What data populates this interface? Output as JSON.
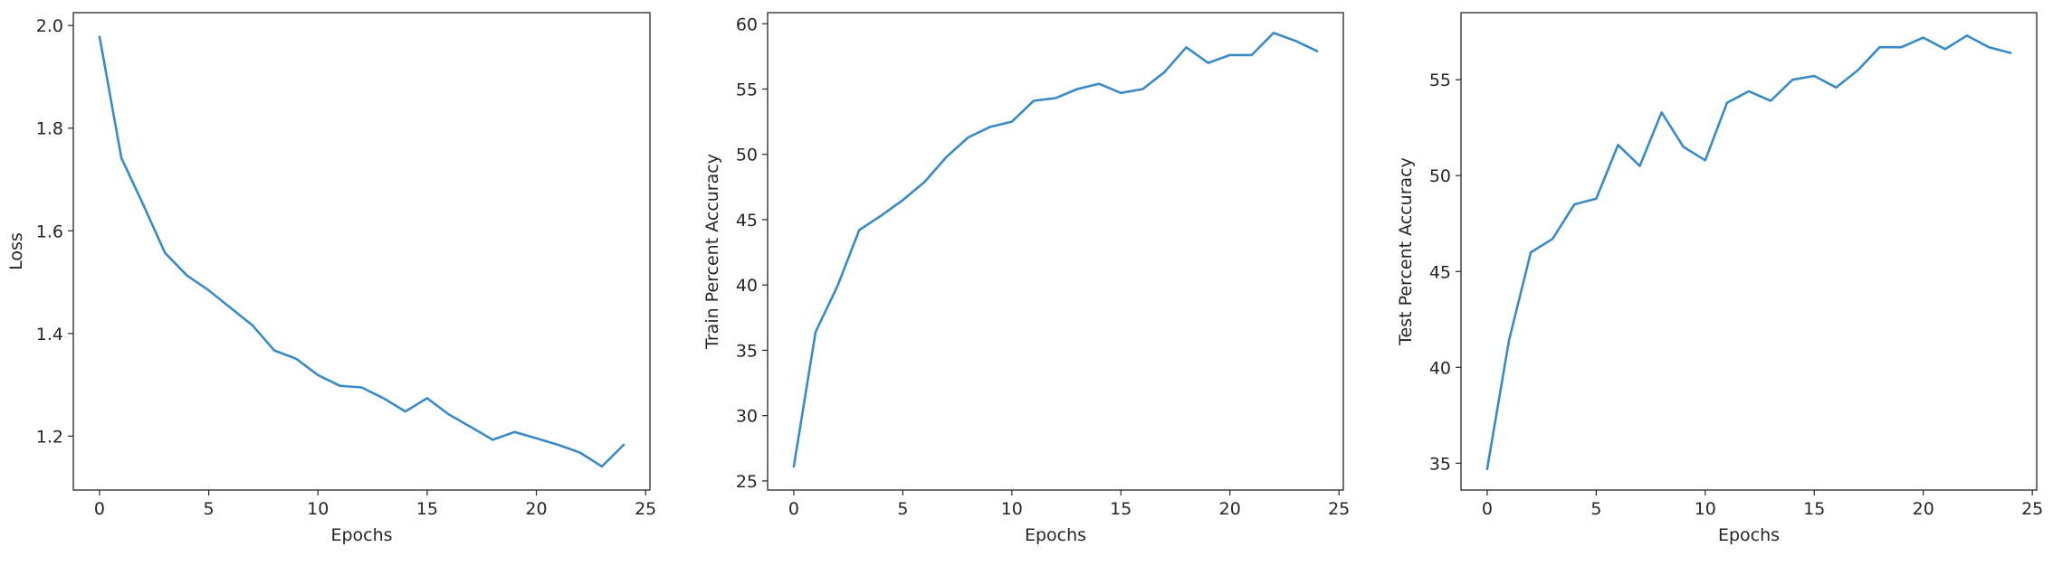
{
  "figure": {
    "line_color": "#3a8bc4",
    "axis_color": "#262626",
    "background": "#ffffff"
  },
  "chart_data": [
    {
      "type": "line",
      "title": "",
      "xlabel": "Epochs",
      "ylabel": "Loss",
      "xlim": [
        -1.2,
        25.2
      ],
      "ylim": [
        1.095,
        2.025
      ],
      "xticks": [
        0,
        5,
        10,
        15,
        20,
        25
      ],
      "yticks": [
        1.2,
        1.4,
        1.6,
        1.8,
        2.0
      ],
      "ytick_labels": [
        "1.2",
        "1.4",
        "1.6",
        "1.8",
        "2.0"
      ],
      "grid": false,
      "series": [
        {
          "x": [
            0,
            1,
            2,
            3,
            4,
            5,
            6,
            7,
            8,
            9,
            10,
            11,
            12,
            13,
            14,
            15,
            16,
            17,
            18,
            19,
            20,
            21,
            22,
            23,
            24
          ],
          "values": [
            1.978,
            1.742,
            1.651,
            1.557,
            1.513,
            1.484,
            1.45,
            1.416,
            1.367,
            1.351,
            1.319,
            1.298,
            1.295,
            1.274,
            1.248,
            1.274,
            1.242,
            1.218,
            1.193,
            1.208,
            1.196,
            1.183,
            1.168,
            1.141,
            1.183
          ]
        }
      ]
    },
    {
      "type": "line",
      "title": "",
      "xlabel": "Epochs",
      "ylabel": "Train Percent Accuracy",
      "xlim": [
        -1.2,
        25.2
      ],
      "ylim": [
        24.3,
        60.85
      ],
      "xticks": [
        0,
        5,
        10,
        15,
        20,
        25
      ],
      "yticks": [
        25,
        30,
        35,
        40,
        45,
        50,
        55,
        60
      ],
      "ytick_labels": [
        "25",
        "30",
        "35",
        "40",
        "45",
        "50",
        "55",
        "60"
      ],
      "grid": false,
      "series": [
        {
          "x": [
            0,
            1,
            2,
            3,
            4,
            5,
            6,
            7,
            8,
            9,
            10,
            11,
            12,
            13,
            14,
            15,
            16,
            17,
            18,
            19,
            20,
            21,
            22,
            23,
            24
          ],
          "values": [
            26.1,
            36.4,
            39.9,
            44.2,
            45.3,
            46.5,
            47.9,
            49.8,
            51.3,
            52.1,
            52.5,
            54.1,
            54.3,
            55.0,
            55.4,
            54.7,
            55.0,
            56.3,
            58.2,
            57.0,
            57.6,
            57.6,
            59.3,
            58.7,
            57.9
          ]
        }
      ]
    },
    {
      "type": "line",
      "title": "",
      "xlabel": "Epochs",
      "ylabel": "Test Percent Accuracy",
      "xlim": [
        -1.2,
        25.2
      ],
      "ylim": [
        33.6,
        58.5
      ],
      "xticks": [
        0,
        5,
        10,
        15,
        20,
        25
      ],
      "yticks": [
        35,
        40,
        45,
        50,
        55
      ],
      "ytick_labels": [
        "35",
        "40",
        "45",
        "50",
        "55"
      ],
      "grid": false,
      "series": [
        {
          "x": [
            0,
            1,
            2,
            3,
            4,
            5,
            6,
            7,
            8,
            9,
            10,
            11,
            12,
            13,
            14,
            15,
            16,
            17,
            18,
            19,
            20,
            21,
            22,
            23,
            24
          ],
          "values": [
            34.7,
            41.4,
            46.0,
            46.7,
            48.5,
            48.8,
            51.6,
            50.5,
            53.3,
            51.5,
            50.8,
            53.8,
            54.4,
            53.9,
            55.0,
            55.2,
            54.6,
            55.5,
            56.7,
            56.7,
            57.2,
            56.6,
            57.3,
            56.7,
            56.4
          ]
        }
      ]
    }
  ]
}
